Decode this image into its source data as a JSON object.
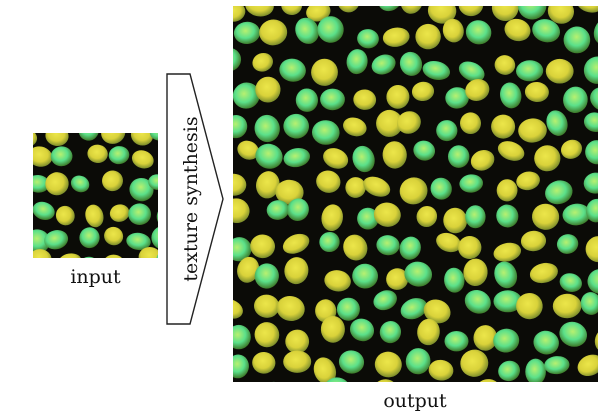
{
  "labels": {
    "input": "input",
    "process": "texture synthesis",
    "output": "output"
  },
  "colors": {
    "cell_yellow": "#d9d23a",
    "cell_green": "#5be08a",
    "cell_outer": "#7c8d2b",
    "border": "#0b0b07",
    "arrow_stroke": "#222222"
  }
}
